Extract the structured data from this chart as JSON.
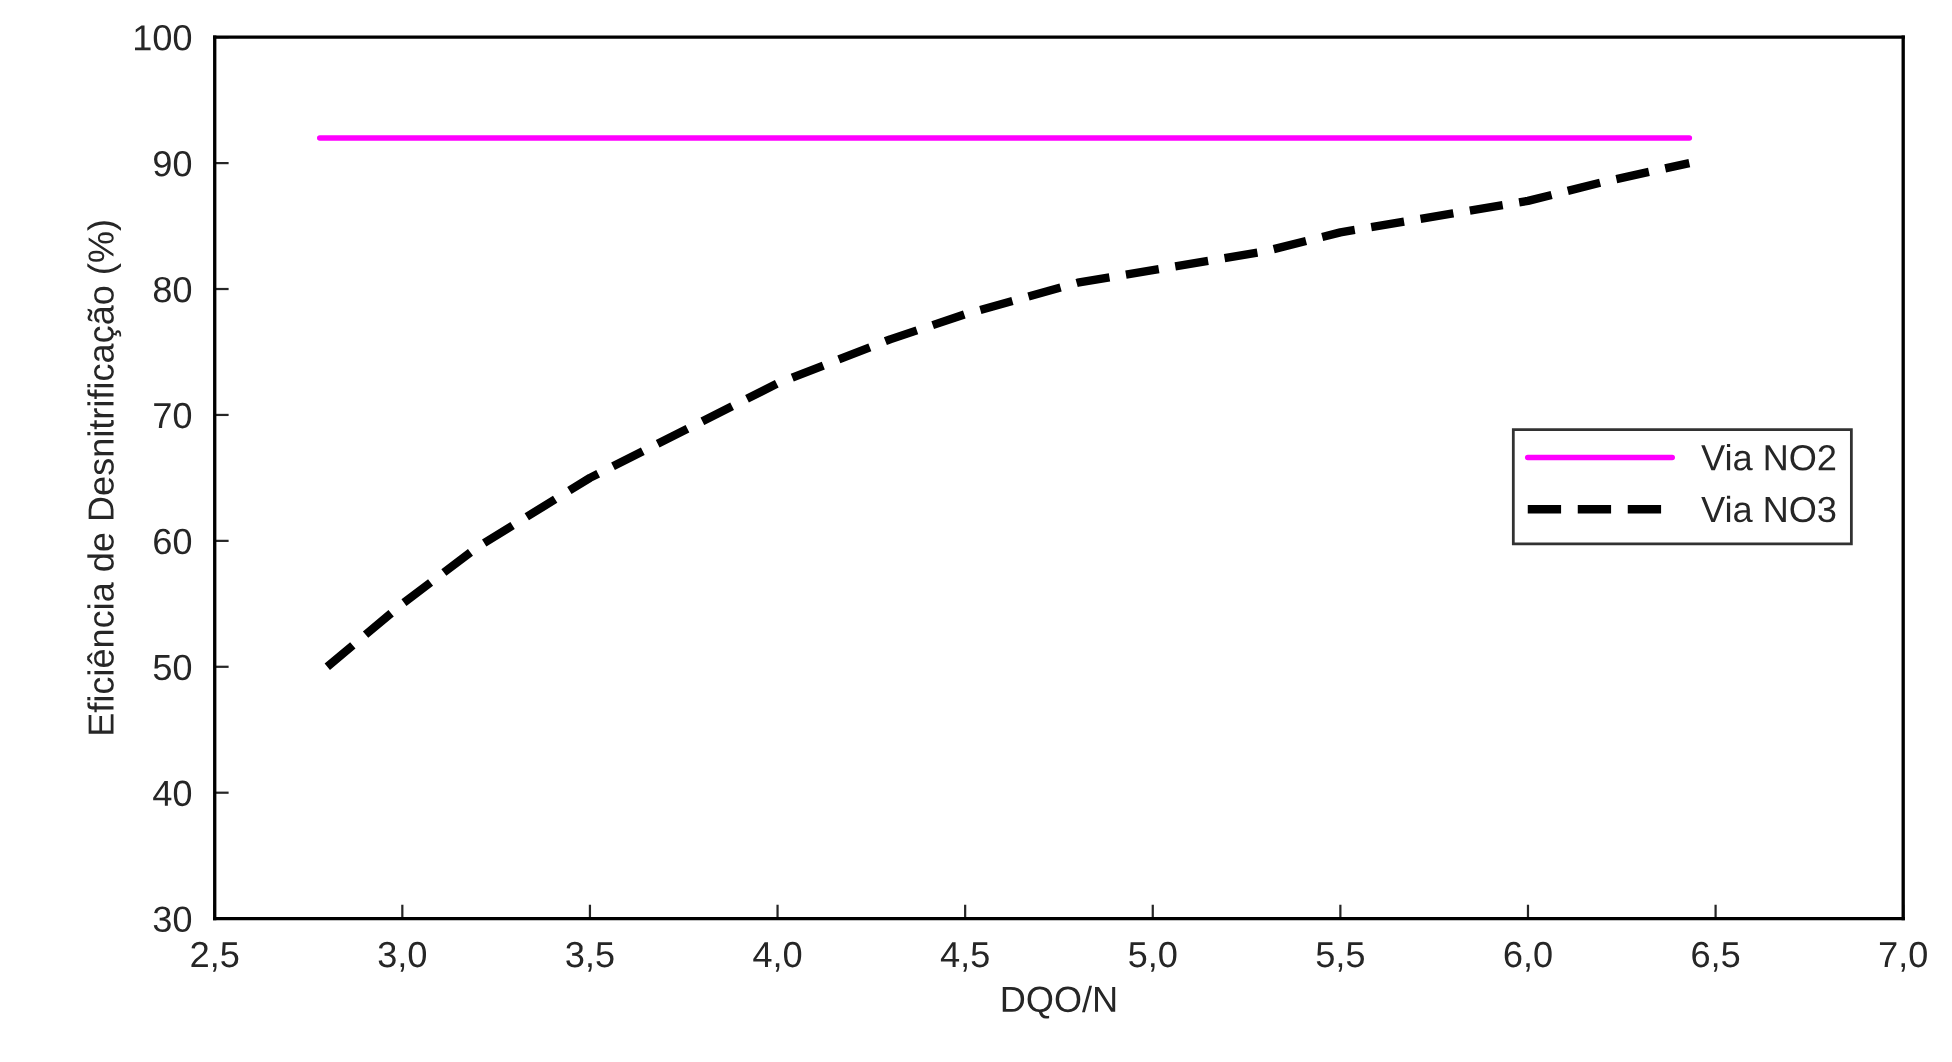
{
  "chart_data": {
    "type": "line",
    "xlabel": "DQO/N",
    "ylabel": "Eficiência de Desnitrificação (%)",
    "xlim": [
      2.5,
      7.0
    ],
    "ylim": [
      30,
      100
    ],
    "xticks": [
      {
        "value": 2.5,
        "label": "2,5"
      },
      {
        "value": 3.0,
        "label": "3,0"
      },
      {
        "value": 3.5,
        "label": "3,5"
      },
      {
        "value": 4.0,
        "label": "4,0"
      },
      {
        "value": 4.5,
        "label": "4,5"
      },
      {
        "value": 5.0,
        "label": "5,0"
      },
      {
        "value": 5.5,
        "label": "5,5"
      },
      {
        "value": 6.0,
        "label": "6,0"
      },
      {
        "value": 6.5,
        "label": "6,5"
      },
      {
        "value": 7.0,
        "label": "7,0"
      }
    ],
    "yticks": [
      30,
      40,
      50,
      60,
      70,
      80,
      90,
      100
    ],
    "grid": false,
    "legend": "right",
    "marker": "none",
    "series": [
      {
        "name": "Via NO2",
        "color": "#ff00ff",
        "line_style": "solid",
        "x": [
          2.78,
          6.43
        ],
        "values": [
          92,
          92
        ]
      },
      {
        "name": "Via NO3",
        "color": "#000000",
        "line_style": "dashed",
        "x": [
          2.8,
          3.0,
          3.2,
          3.5,
          3.8,
          4.0,
          4.3,
          4.5,
          4.8,
          5.0,
          5.3,
          5.5,
          5.8,
          6.0,
          6.2,
          6.43
        ],
        "values": [
          50,
          55,
          59.5,
          65,
          69.5,
          72.5,
          76,
          78,
          80.5,
          81.5,
          83,
          84.5,
          86,
          87,
          88.5,
          90
        ]
      }
    ]
  }
}
